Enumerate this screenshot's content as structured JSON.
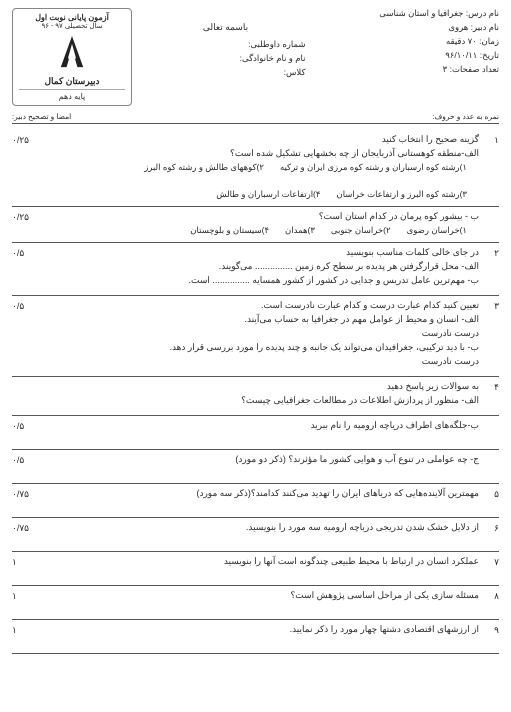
{
  "header": {
    "right": {
      "course": "نام درس: جغرافیا و استان شناسی",
      "teacher": "نام دبیر: هروی",
      "duration": "زمان: ۷۰ دقیقه",
      "date": "تاریخ: ۹۶/۱۰/۱۱",
      "pages": "تعداد صفحات: ۳"
    },
    "center": {
      "bismillah": "باسمه تعالی",
      "idnum": "شماره داوطلبی:",
      "name": "نام و نام خانوادگی:",
      "class": "کلاس:"
    },
    "left": {
      "title_top": "آزمون پایانی نوبت اول",
      "year": "سال تحصیلی ۹۷ - ۹۶",
      "school": "دبیرستان کمال",
      "grade": "پایه دهم",
      "score_label": "نمره به عدد و حروف:",
      "sign_label": "امضا و تصحیح دبیر:"
    }
  },
  "questions": [
    {
      "num": "۱",
      "score": "۰/۲۵",
      "lines": [
        "گزینه صحیح را انتخاب کنید",
        "الف-منطقه کوهستانی آذربایجان از چه بخشهایی تشکیل شده است؟"
      ],
      "options": [
        "۱)رشته کوه ارسباران و رشته کوه مرزی ایران و ترکیه",
        "۲)کوههای طالش و رشته کوه البرز",
        "۳)رشته کوه البرز و ارتفاعات خراسان",
        "۴)ارتفاعات ارسباران و طالش"
      ]
    },
    {
      "num": "",
      "score": "۰/۲۵",
      "lines": [
        "ب - بیشور کوه پرمان در کدام استان است؟"
      ],
      "options": [
        "۱)خراسان رضوی",
        "۲)خراسان جنوبی",
        "۳)همدان",
        "۴)سیستان و بلوچستان"
      ]
    },
    {
      "num": "۲",
      "score": "۰/۵",
      "lines": [
        "در جای خالی کلمات مناسب بنویسید",
        "الف- محل قرارگرفتن هر پدیده بر سطح کره زمین ............... می‌گویند.",
        "ب- مهم‌ترین عامل تدریس و جدایی در کشور از کشور همسایه ............... است."
      ],
      "options": []
    },
    {
      "num": "۳",
      "score": "۰/۵",
      "lines": [
        "تعیین کنید کدام عبارت درست و کدام عبارت نادرست است.",
        "الف- انسان و محیط از عوامل مهم در جغرافیا به حساب می‌آیند.",
        "درست       نادرست",
        "ب- با دید ترکیبی، جغرافیدان می‌تواند یک جانبه و چند پدیده را مورد بررسی قرار دهد.",
        "درست       نادرست"
      ],
      "options": []
    },
    {
      "num": "۴",
      "score": "",
      "lines": [
        "به سوالات زیر پاسخ دهید",
        "الف- منظور از پردازش اطلاعات در مطالعات جغرافیایی چیست؟"
      ],
      "options": []
    },
    {
      "num": "",
      "score": "۰/۵",
      "lines": [
        "ب-جلگه‌های اطراف دریاچه ارومیه را نام ببرید"
      ],
      "options": []
    },
    {
      "num": "",
      "score": "۰/۵",
      "lines": [
        "ج- چه عواملی در تنوع آب و هوایی کشور ما مؤثرند؟ (ذکر دو مورد)"
      ],
      "options": []
    },
    {
      "num": "۵",
      "score": "۰/۷۵",
      "lines": [
        "مهمترین آلاینده‌هایی که دریاهای ایران را تهدید می‌کنند کدامند؟(ذکر سه مورد)"
      ],
      "options": []
    },
    {
      "num": "۶",
      "score": "۰/۷۵",
      "lines": [
        "از دلایل خشک شدن تدریجی دریاچه ارومیه سه مورد را بنویسید."
      ],
      "options": []
    },
    {
      "num": "۷",
      "score": "۱",
      "lines": [
        "عملکرد انسان در ارتباط با محیط طبیعی چندگونه است آنها را بنویسید"
      ],
      "options": []
    },
    {
      "num": "۸",
      "score": "۱",
      "lines": [
        "مسئله سازی یکی از مراحل اساسی پژوهش است؟"
      ],
      "options": []
    },
    {
      "num": "۹",
      "score": "۱",
      "lines": [
        "از ارزشهای اقتصادی دشتها چهار مورد را ذکر نمایید."
      ],
      "options": []
    }
  ]
}
